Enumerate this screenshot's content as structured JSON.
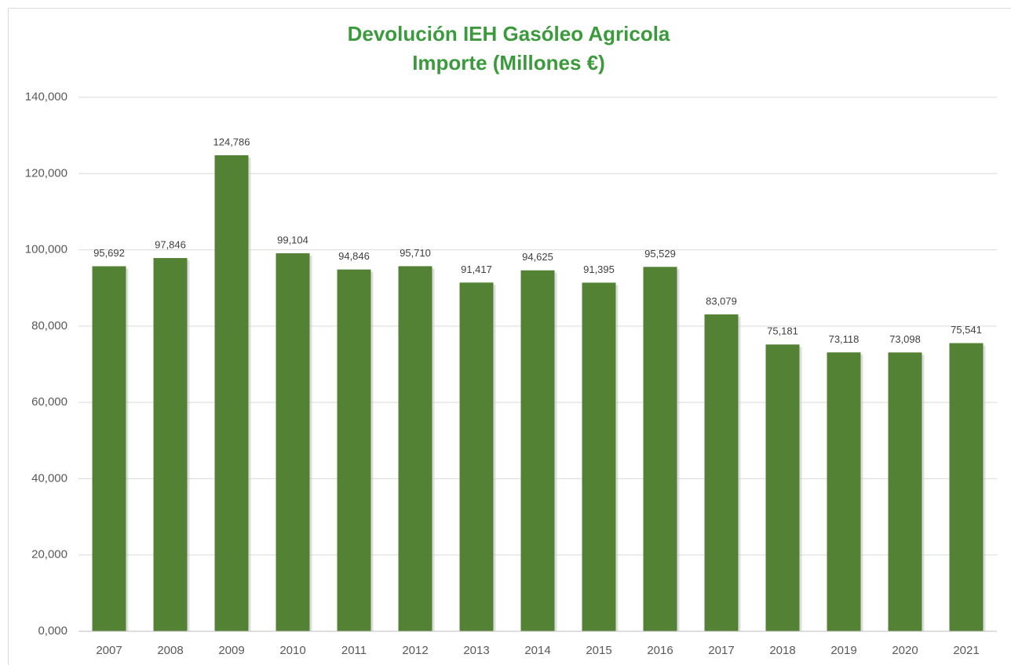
{
  "chart_data": {
    "type": "bar",
    "title": "Devolución IEH Gasóleo Agricola",
    "subtitle": "Importe (Millones €)",
    "categories": [
      "2007",
      "2008",
      "2009",
      "2010",
      "2011",
      "2012",
      "2013",
      "2014",
      "2015",
      "2016",
      "2017",
      "2018",
      "2019",
      "2020",
      "2021"
    ],
    "values": [
      95.692,
      97.846,
      124.786,
      99.104,
      94.846,
      95.71,
      91.417,
      94.625,
      91.395,
      95.529,
      83.079,
      75.181,
      73.118,
      73.098,
      75.541
    ],
    "value_labels": [
      "95,692",
      "97,846",
      "124,786",
      "99,104",
      "94,846",
      "95,710",
      "91,417",
      "94,625",
      "91,395",
      "95,529",
      "83,079",
      "75,181",
      "73,118",
      "73,098",
      "75,541"
    ],
    "color": "#548235",
    "ylim": [
      0,
      140
    ],
    "yticks": [
      {
        "value": 0,
        "label": "0,000"
      },
      {
        "value": 20,
        "label": "20,000"
      },
      {
        "value": 40,
        "label": "40,000"
      },
      {
        "value": 60,
        "label": "60,000"
      },
      {
        "value": 80,
        "label": "80,000"
      },
      {
        "value": 100,
        "label": "100,000"
      },
      {
        "value": 120,
        "label": "120,000"
      },
      {
        "value": 140,
        "label": "140,000"
      }
    ],
    "grid": true
  }
}
